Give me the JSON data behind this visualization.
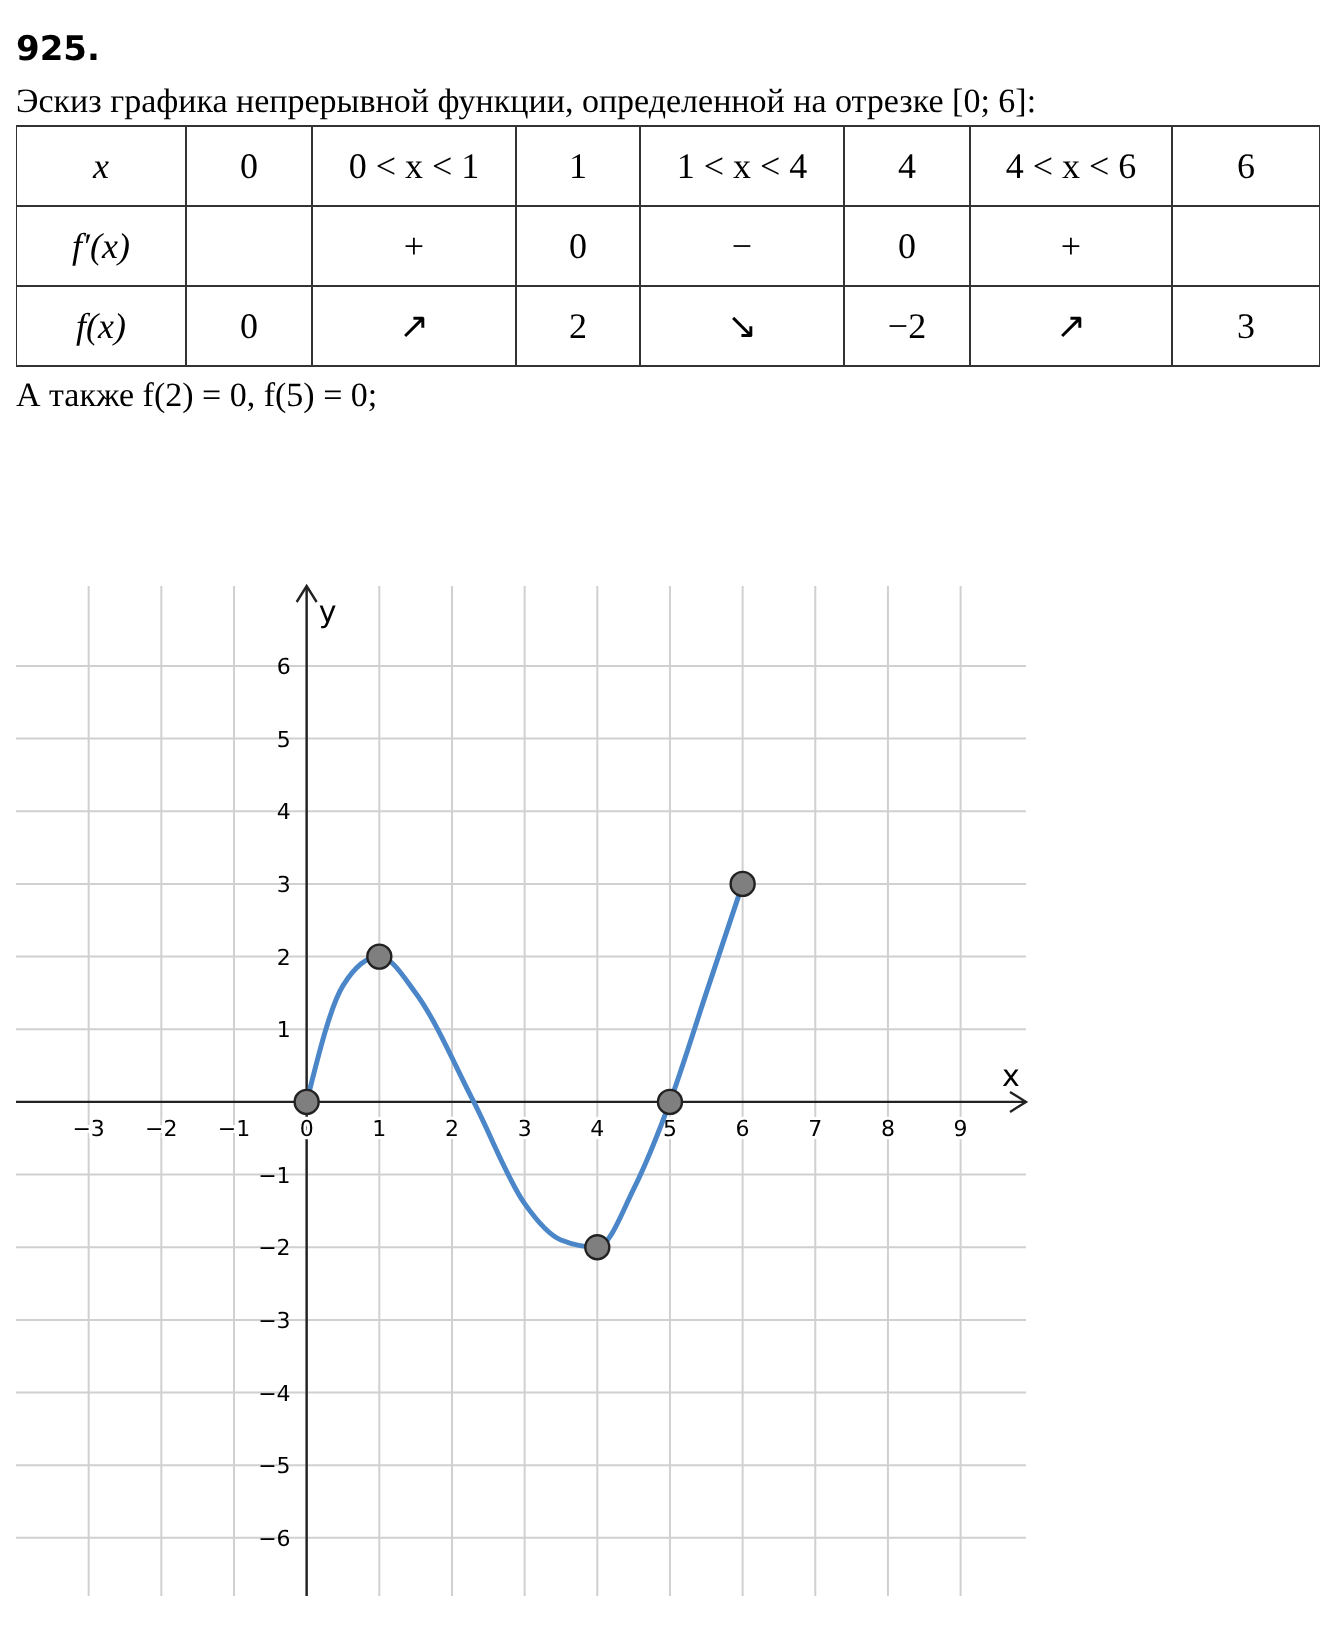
{
  "chart_data": [
    {
      "type": "other",
      "title": "925.",
      "subtitle": "Эскиз графика непрерывной функции, определенной на отрезке [0; 6]:",
      "annotations": [
        "x",
        "0",
        "0 < x < 1",
        "1",
        "1 < x < 4",
        "4",
        "4 < x < 6",
        "6",
        "f′(x)",
        null,
        "+",
        "0",
        "−",
        "0",
        "+",
        null,
        "f(x)",
        "0",
        "↗",
        "2",
        "↘",
        "−2",
        "↗",
        "3",
        "А также f(2) = 0,  f(5) = 0;"
      ]
    },
    {
      "type": "line",
      "xlabel": "x",
      "ylabel": "y",
      "xlim": [
        -4,
        9.9
      ],
      "ylim": [
        -6.8,
        7.1
      ],
      "xticks": [
        -3,
        -2,
        -1,
        0,
        1,
        2,
        3,
        4,
        5,
        6,
        7,
        8,
        9
      ],
      "yticks": [
        -6,
        -5,
        -4,
        -3,
        -2,
        -1,
        1,
        2,
        3,
        4,
        5,
        6
      ],
      "grid": true,
      "series": [
        {
          "type": "line",
          "color": "#4a86c8",
          "marker": "none",
          "x": [
            0,
            0.5,
            1,
            1.5,
            2.3,
            3,
            3.5,
            4,
            4.5,
            5,
            5.5,
            6
          ],
          "values": [
            0,
            1.6,
            2,
            1.5,
            0,
            -1.4,
            -1.9,
            -2,
            -1.2,
            0,
            1.5,
            3
          ]
        },
        {
          "type": "scatter",
          "color": "#7f7f7f",
          "marker": "circle",
          "x": [
            0,
            1,
            4,
            5,
            6
          ],
          "values": [
            0,
            2,
            -2,
            0,
            3
          ]
        }
      ]
    }
  ]
}
